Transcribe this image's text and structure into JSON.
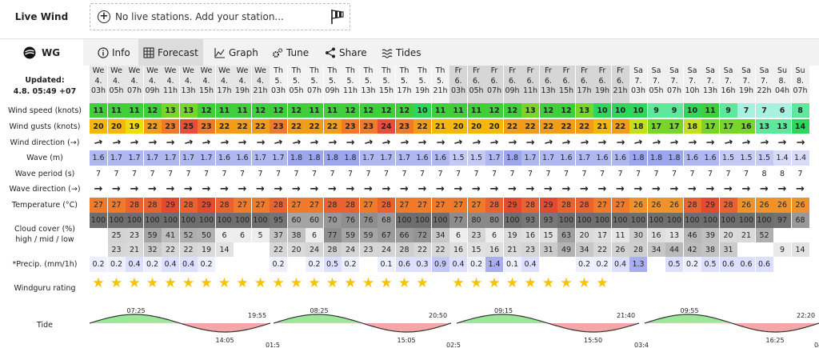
{
  "livewind": {
    "label": "Live Wind",
    "text": "No live stations. Add your station..."
  },
  "tabs": {
    "brand": "WG",
    "items": [
      {
        "id": "info",
        "label": "Info",
        "icon": "info-icon"
      },
      {
        "id": "forecast",
        "label": "Forecast",
        "icon": "grid-icon",
        "active": true
      },
      {
        "id": "graph",
        "label": "Graph",
        "icon": "graph-icon"
      },
      {
        "id": "tune",
        "label": "Tune",
        "icon": "gears-icon"
      },
      {
        "id": "share",
        "label": "Share",
        "icon": "share-icon"
      },
      {
        "id": "tides",
        "label": "Tides",
        "icon": "waves-icon"
      }
    ]
  },
  "forecast": {
    "updated_label": "Updated:",
    "updated_value": "4.8. 05:49 +07",
    "row_labels": {
      "speed": "Wind speed (knots)",
      "gusts": "Wind gusts (knots)",
      "wdir": "Wind direction (→)",
      "wave": "Wave (m)",
      "period": "Wave period (s)",
      "wavedir": "Wave direction (→)",
      "temp": "Temperature (°C)",
      "cloud1": "Cloud cover (%)",
      "cloud2": "high / mid / low",
      "precip": "*Precip. (mm/1h)",
      "rating": "Windguru rating",
      "tide": "Tide"
    },
    "columns": [
      {
        "d": "We",
        "n": "4.",
        "h": "03h",
        "spd": 11,
        "gst": 20,
        "wav": 1.6,
        "per": 7,
        "tmp": 27,
        "hi": 100,
        "mid": "",
        "low": "",
        "pre": "0.2",
        "rat": 1
      },
      {
        "d": "We",
        "n": "4.",
        "h": "05h",
        "spd": 11,
        "gst": 20,
        "wav": 1.7,
        "per": 7,
        "tmp": 27,
        "hi": 100,
        "mid": 25,
        "low": 23,
        "pre": "0.2",
        "rat": 1
      },
      {
        "d": "We",
        "n": "4.",
        "h": "07h",
        "spd": 11,
        "gst": 19,
        "wav": 1.7,
        "per": 7,
        "tmp": 28,
        "hi": 100,
        "mid": 23,
        "low": 21,
        "pre": "0.4",
        "rat": 1
      },
      {
        "d": "We",
        "n": "4.",
        "h": "09h",
        "spd": 12,
        "gst": 22,
        "wav": 1.7,
        "per": 7,
        "tmp": 28,
        "hi": 100,
        "mid": 59,
        "low": 32,
        "pre": "0.2",
        "rat": 1
      },
      {
        "d": "We",
        "n": "4.",
        "h": "11h",
        "spd": 13,
        "gst": 23,
        "wav": 1.7,
        "per": 7,
        "tmp": 29,
        "hi": 100,
        "mid": 41,
        "low": 22,
        "pre": "0.4",
        "rat": 1
      },
      {
        "d": "We",
        "n": "4.",
        "h": "13h",
        "spd": 13,
        "gst": 25,
        "wav": 1.7,
        "per": 7,
        "tmp": 28,
        "hi": 100,
        "mid": 52,
        "low": 22,
        "pre": "0.4",
        "rat": 1
      },
      {
        "d": "We",
        "n": "4.",
        "h": "15h",
        "spd": 12,
        "gst": 23,
        "wav": 1.7,
        "per": 7,
        "tmp": 29,
        "hi": 100,
        "mid": 50,
        "low": 19,
        "pre": "0.2",
        "rat": 1
      },
      {
        "d": "We",
        "n": "4.",
        "h": "17h",
        "spd": 11,
        "gst": 22,
        "wav": 1.6,
        "per": 7,
        "tmp": 28,
        "hi": 100,
        "mid": 6,
        "low": 14,
        "pre": "",
        "rat": 1
      },
      {
        "d": "We",
        "n": "4.",
        "h": "19h",
        "spd": 11,
        "gst": 22,
        "wav": 1.6,
        "per": 7,
        "tmp": 27,
        "hi": 100,
        "mid": 6,
        "low": "",
        "pre": "",
        "rat": 1
      },
      {
        "d": "We",
        "n": "4.",
        "h": "21h",
        "spd": 12,
        "gst": 22,
        "wav": 1.7,
        "per": 7,
        "tmp": 27,
        "hi": 100,
        "mid": 5,
        "low": "",
        "pre": "",
        "rat": 1
      },
      {
        "d": "Th",
        "n": "5.",
        "h": "03h",
        "spd": 12,
        "gst": 23,
        "wav": 1.7,
        "per": 7,
        "tmp": 28,
        "hi": 95,
        "mid": 37,
        "low": 22,
        "pre": "0.2",
        "rat": 1
      },
      {
        "d": "Th",
        "n": "5.",
        "h": "05h",
        "spd": 12,
        "gst": 22,
        "wav": 1.8,
        "per": 7,
        "tmp": 27,
        "hi": 60,
        "mid": 38,
        "low": 20,
        "pre": "",
        "rat": 1
      },
      {
        "d": "Th",
        "n": "5.",
        "h": "07h",
        "spd": 11,
        "gst": 22,
        "wav": 1.8,
        "per": 7,
        "tmp": 27,
        "hi": 60,
        "mid": 6,
        "low": 24,
        "pre": "0.2",
        "rat": 1
      },
      {
        "d": "Th",
        "n": "5.",
        "h": "09h",
        "spd": 11,
        "gst": 22,
        "wav": 1.8,
        "per": 7,
        "tmp": 28,
        "hi": 70,
        "mid": 77,
        "low": 28,
        "pre": "0.5",
        "rat": 1
      },
      {
        "d": "Th",
        "n": "5.",
        "h": "11h",
        "spd": 12,
        "gst": 23,
        "wav": 1.8,
        "per": 7,
        "tmp": 28,
        "hi": 76,
        "mid": 59,
        "low": 24,
        "pre": "0.2",
        "rat": 1
      },
      {
        "d": "Th",
        "n": "5.",
        "h": "13h",
        "spd": 12,
        "gst": 23,
        "wav": 1.7,
        "per": 7,
        "tmp": 27,
        "hi": 76,
        "mid": 59,
        "low": 23,
        "pre": "",
        "rat": 1
      },
      {
        "d": "Th",
        "n": "5.",
        "h": "15h",
        "spd": 12,
        "gst": 24,
        "wav": 1.7,
        "per": 7,
        "tmp": 28,
        "hi": 68,
        "mid": 67,
        "low": 24,
        "pre": "0.1",
        "rat": 1
      },
      {
        "d": "Th",
        "n": "5.",
        "h": "17h",
        "spd": 12,
        "gst": 23,
        "wav": 1.7,
        "per": 7,
        "tmp": 27,
        "hi": 100,
        "mid": 66,
        "low": 28,
        "pre": "0.6",
        "rat": 1
      },
      {
        "d": "Th",
        "n": "5.",
        "h": "19h",
        "spd": 10,
        "gst": 22,
        "wav": 1.6,
        "per": 7,
        "tmp": 27,
        "hi": 100,
        "mid": 72,
        "low": 22,
        "pre": "0.3",
        "rat": 1
      },
      {
        "d": "Th",
        "n": "5.",
        "h": "21h",
        "spd": 11,
        "gst": 21,
        "wav": 1.6,
        "per": 7,
        "tmp": 27,
        "hi": 100,
        "mid": 34,
        "low": 22,
        "pre": "0.9",
        "rat": 0
      },
      {
        "d": "Fr",
        "n": "6.",
        "h": "03h",
        "spd": 11,
        "gst": 20,
        "wav": 1.5,
        "per": 7,
        "tmp": 27,
        "hi": 77,
        "mid": 6,
        "low": 16,
        "pre": "0.4",
        "rat": 1
      },
      {
        "d": "Fr",
        "n": "6.",
        "h": "05h",
        "spd": 11,
        "gst": 20,
        "wav": 1.5,
        "per": 7,
        "tmp": 27,
        "hi": 80,
        "mid": 23,
        "low": 15,
        "pre": "0.2",
        "rat": 1
      },
      {
        "d": "Fr",
        "n": "6.",
        "h": "07h",
        "spd": 12,
        "gst": 20,
        "wav": 1.7,
        "per": 7,
        "tmp": 28,
        "hi": 80,
        "mid": 6,
        "low": 16,
        "pre": "1.4",
        "rat": 1
      },
      {
        "d": "Fr",
        "n": "6.",
        "h": "09h",
        "spd": 12,
        "gst": 22,
        "wav": 1.8,
        "per": 7,
        "tmp": 29,
        "hi": 100,
        "mid": 19,
        "low": 21,
        "pre": "0.1",
        "rat": 1
      },
      {
        "d": "Fr",
        "n": "6.",
        "h": "11h",
        "spd": 13,
        "gst": 22,
        "wav": 1.7,
        "per": 7,
        "tmp": 28,
        "hi": 93,
        "mid": 16,
        "low": 23,
        "pre": "0.4",
        "rat": 1
      },
      {
        "d": "Fr",
        "n": "6.",
        "h": "13h",
        "spd": 12,
        "gst": 22,
        "wav": 1.7,
        "per": 7,
        "tmp": 29,
        "hi": 93,
        "mid": 15,
        "low": 31,
        "pre": "",
        "rat": 1
      },
      {
        "d": "Fr",
        "n": "6.",
        "h": "15h",
        "spd": 12,
        "gst": 22,
        "wav": 1.6,
        "per": 7,
        "tmp": 28,
        "hi": 100,
        "mid": 63,
        "low": 49,
        "pre": "",
        "rat": 1
      },
      {
        "d": "Fr",
        "n": "6.",
        "h": "17h",
        "spd": 13,
        "gst": 22,
        "wav": 1.7,
        "per": 7,
        "tmp": 28,
        "hi": 100,
        "mid": 20,
        "low": 34,
        "pre": "0.2",
        "rat": 1
      },
      {
        "d": "Fr",
        "n": "6.",
        "h": "19h",
        "spd": 10,
        "gst": 21,
        "wav": 1.6,
        "per": 7,
        "tmp": 27,
        "hi": 100,
        "mid": 17,
        "low": 22,
        "pre": "0.2",
        "rat": 1
      },
      {
        "d": "Fr",
        "n": "6.",
        "h": "21h",
        "spd": 10,
        "gst": 22,
        "wav": 1.6,
        "per": 7,
        "tmp": 27,
        "hi": 100,
        "mid": 11,
        "low": 26,
        "pre": "0.4",
        "rat": 0
      },
      {
        "d": "Sa",
        "n": "7.",
        "h": "03h",
        "spd": 10,
        "gst": 18,
        "wav": 1.8,
        "per": 7,
        "tmp": 26,
        "hi": 100,
        "mid": 30,
        "low": 28,
        "pre": "1.3",
        "rat": 0
      },
      {
        "d": "Sa",
        "n": "7.",
        "h": "05h",
        "spd": 9,
        "gst": 17,
        "wav": 1.8,
        "per": 7,
        "tmp": 26,
        "hi": 100,
        "mid": 16,
        "low": 34,
        "pre": "",
        "rat": 0
      },
      {
        "d": "Sa",
        "n": "7.",
        "h": "07h",
        "spd": 9,
        "gst": 17,
        "wav": 1.8,
        "per": 7,
        "tmp": 26,
        "hi": 100,
        "mid": 13,
        "low": 44,
        "pre": "0.5",
        "rat": 0
      },
      {
        "d": "Sa",
        "n": "7.",
        "h": "10h",
        "spd": 10,
        "gst": 18,
        "wav": 1.6,
        "per": 7,
        "tmp": 28,
        "hi": 100,
        "mid": 46,
        "low": 42,
        "pre": "0.2",
        "rat": 0
      },
      {
        "d": "Sa",
        "n": "7.",
        "h": "13h",
        "spd": 11,
        "gst": 17,
        "wav": 1.6,
        "per": 7,
        "tmp": 29,
        "hi": 100,
        "mid": 39,
        "low": 38,
        "pre": "0.5",
        "rat": 0
      },
      {
        "d": "Sa",
        "n": "7.",
        "h": "16h",
        "spd": 9,
        "gst": 17,
        "wav": 1.5,
        "per": 7,
        "tmp": 28,
        "hi": 100,
        "mid": 20,
        "low": 31,
        "pre": "0.6",
        "rat": 0
      },
      {
        "d": "Sa",
        "n": "7.",
        "h": "19h",
        "spd": 7,
        "gst": 16,
        "wav": 1.5,
        "per": 7,
        "tmp": 26,
        "hi": 100,
        "mid": 21,
        "low": "",
        "pre": "0.6",
        "rat": 0
      },
      {
        "d": "Sa",
        "n": "7.",
        "h": "22h",
        "spd": 7,
        "gst": 13,
        "wav": 1.5,
        "per": 8,
        "tmp": 26,
        "hi": 100,
        "mid": 52,
        "low": "",
        "pre": "0.6",
        "rat": 0
      },
      {
        "d": "Su",
        "n": "8.",
        "h": "04h",
        "spd": 6,
        "gst": 13,
        "wav": 1.4,
        "per": 8,
        "tmp": 26,
        "hi": 97,
        "mid": "",
        "low": 9,
        "pre": "",
        "rat": 0
      },
      {
        "d": "Su",
        "n": "8.",
        "h": "07h",
        "spd": 8,
        "gst": 14,
        "wav": 1.4,
        "per": 7,
        "tmp": 26,
        "hi": 68,
        "mid": "",
        "low": 14,
        "pre": "",
        "rat": 0
      }
    ],
    "tide": {
      "high_times": [
        "07:25",
        "19:55",
        "08:25",
        "20:50",
        "09:15",
        "21:40",
        "09:55",
        "22:20"
      ],
      "low_times": [
        "14:05",
        "01:5",
        "15:05",
        "02:5",
        "15:50",
        "03:4",
        "16:25",
        "04:2"
      ]
    },
    "colors": {
      "wind_scale": [
        "#d8f5f5",
        "#a8f0e0",
        "#5ee89c",
        "#2ed75a",
        "#3fcf3a",
        "#78d62a",
        "#c4e01a",
        "#f0dc0a",
        "#f5b80a",
        "#f39c1a",
        "#f07a2a",
        "#ea4c3a"
      ],
      "temp_scale": [
        "#f0922a",
        "#ee7a2a",
        "#ea6230",
        "#e44a30"
      ],
      "wave_scale": [
        "#d8dcf8",
        "#c4caf4",
        "#b0b8f0",
        "#9ca6ec"
      ],
      "precip_scale": [
        "#eef0ff",
        "#dcdfff",
        "#c4c8f8",
        "#a8aef0"
      ]
    }
  }
}
